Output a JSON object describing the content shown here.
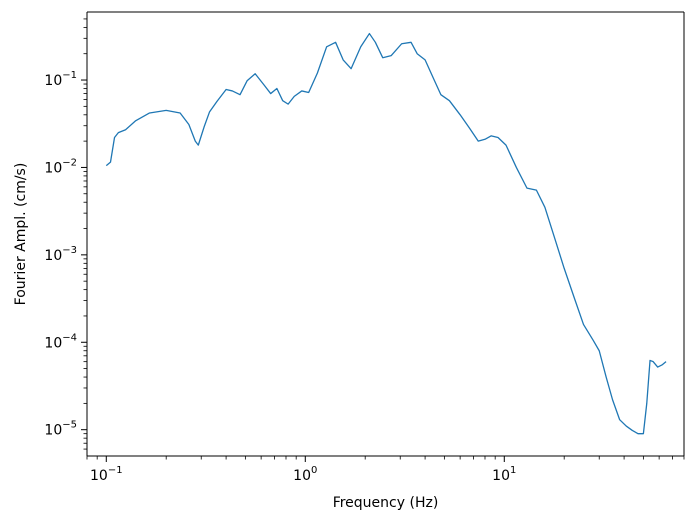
{
  "chart_data": {
    "type": "line",
    "title": "",
    "xlabel": "Frequency (Hz)",
    "ylabel": "Fourier Ampl. (cm/s)",
    "xscale": "log",
    "yscale": "log",
    "xlim": [
      0.08,
      80
    ],
    "ylim": [
      5e-06,
      0.6
    ],
    "grid": false,
    "legend": "none",
    "x_ticks": [
      {
        "value": 0.1,
        "label_base": "10",
        "label_exp": "−1"
      },
      {
        "value": 1,
        "label_base": "10",
        "label_exp": "0"
      },
      {
        "value": 10,
        "label_base": "10",
        "label_exp": "1"
      }
    ],
    "y_ticks": [
      {
        "value": 1e-05,
        "label_base": "10",
        "label_exp": "−5"
      },
      {
        "value": 0.0001,
        "label_base": "10",
        "label_exp": "−4"
      },
      {
        "value": 0.001,
        "label_base": "10",
        "label_exp": "−3"
      },
      {
        "value": 0.01,
        "label_base": "10",
        "label_exp": "−2"
      },
      {
        "value": 0.1,
        "label_base": "10",
        "label_exp": "−1"
      }
    ],
    "series": [
      {
        "color": "#1f77b4",
        "x": [
          0.1,
          0.105,
          0.11,
          0.115,
          0.125,
          0.14,
          0.165,
          0.2,
          0.235,
          0.26,
          0.28,
          0.29,
          0.31,
          0.33,
          0.36,
          0.4,
          0.43,
          0.47,
          0.51,
          0.56,
          0.62,
          0.67,
          0.72,
          0.77,
          0.82,
          0.88,
          0.96,
          1.04,
          1.15,
          1.28,
          1.42,
          1.55,
          1.7,
          1.9,
          2.1,
          2.25,
          2.45,
          2.7,
          3.05,
          3.4,
          3.65,
          4.0,
          4.4,
          4.8,
          5.3,
          6.0,
          6.7,
          7.4,
          8.0,
          8.6,
          9.3,
          10.2,
          11.5,
          13.0,
          14.5,
          16.0,
          18.0,
          20.0,
          22.5,
          25.0,
          28.0,
          30.0,
          32.5,
          35.0,
          38.0,
          41.0,
          44.0,
          47.0,
          50.0,
          52.0,
          54.0,
          56.0,
          59.0,
          62.0,
          65.0
        ],
        "y": [
          0.0105,
          0.0115,
          0.022,
          0.025,
          0.027,
          0.034,
          0.042,
          0.045,
          0.042,
          0.031,
          0.02,
          0.018,
          0.029,
          0.043,
          0.057,
          0.078,
          0.075,
          0.068,
          0.098,
          0.118,
          0.088,
          0.07,
          0.08,
          0.058,
          0.053,
          0.065,
          0.075,
          0.072,
          0.12,
          0.24,
          0.27,
          0.17,
          0.135,
          0.24,
          0.34,
          0.27,
          0.18,
          0.19,
          0.26,
          0.27,
          0.2,
          0.17,
          0.105,
          0.068,
          0.058,
          0.04,
          0.028,
          0.02,
          0.021,
          0.023,
          0.022,
          0.018,
          0.01,
          0.0058,
          0.0055,
          0.0035,
          0.0015,
          0.0007,
          0.00032,
          0.00016,
          0.000105,
          8e-05,
          4e-05,
          2.2e-05,
          1.3e-05,
          1.1e-05,
          9.8e-06,
          9e-06,
          9e-06,
          2e-05,
          6.2e-05,
          6e-05,
          5.2e-05,
          5.5e-05,
          6e-05
        ]
      }
    ]
  }
}
